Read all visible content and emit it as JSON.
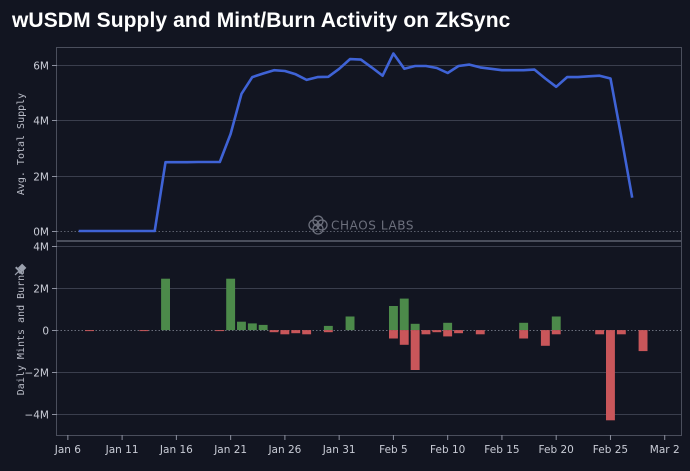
{
  "title": "wUSDM Supply and Mint/Burn Activity on ZkSync",
  "watermark": "CHAOS LABS",
  "pin_icon": "pin-icon",
  "colors": {
    "background": "#121521",
    "line": "#3f63d6",
    "mint": "#4c8a4a",
    "burn": "#c9565a",
    "grid": "#3a3e4d"
  },
  "chart_data": [
    {
      "type": "line",
      "ylabel": "Avg. Total Supply",
      "ylim": [
        0,
        6600000
      ],
      "yticks": [
        0,
        2000000,
        4000000,
        6000000
      ],
      "ytick_labels": [
        "0M",
        "2M",
        "4M",
        "6M"
      ],
      "grid": true,
      "x_dates": [
        "2025-01-07",
        "2025-01-08",
        "2025-01-09",
        "2025-01-10",
        "2025-01-11",
        "2025-01-12",
        "2025-01-13",
        "2025-01-14",
        "2025-01-15",
        "2025-01-16",
        "2025-01-17",
        "2025-01-18",
        "2025-01-19",
        "2025-01-20",
        "2025-01-21",
        "2025-01-22",
        "2025-01-23",
        "2025-01-24",
        "2025-01-25",
        "2025-01-26",
        "2025-01-27",
        "2025-01-28",
        "2025-01-29",
        "2025-01-30",
        "2025-01-31",
        "2025-02-01",
        "2025-02-02",
        "2025-02-03",
        "2025-02-04",
        "2025-02-05",
        "2025-02-06",
        "2025-02-07",
        "2025-02-08",
        "2025-02-09",
        "2025-02-10",
        "2025-02-11",
        "2025-02-12",
        "2025-02-13",
        "2025-02-14",
        "2025-02-15",
        "2025-02-16",
        "2025-02-17",
        "2025-02-18",
        "2025-02-19",
        "2025-02-20",
        "2025-02-21",
        "2025-02-22",
        "2025-02-23",
        "2025-02-24",
        "2025-02-25",
        "2025-02-26",
        "2025-02-27"
      ],
      "series": [
        {
          "values": [
            0,
            0,
            0,
            0,
            0,
            0,
            0,
            0,
            2480000,
            2480000,
            2480000,
            2490000,
            2490000,
            2490000,
            3500000,
            4950000,
            5550000,
            5680000,
            5800000,
            5770000,
            5650000,
            5450000,
            5550000,
            5560000,
            5850000,
            6200000,
            6180000,
            5900000,
            5600000,
            6400000,
            5850000,
            5950000,
            5950000,
            5880000,
            5700000,
            5950000,
            6000000,
            5900000,
            5850000,
            5800000,
            5800000,
            5800000,
            5820000,
            5500000,
            5200000,
            5550000,
            5550000,
            5580000,
            5600000,
            5500000,
            3400000,
            1200000
          ]
        }
      ]
    },
    {
      "type": "bar",
      "ylabel": "Daily Mints and Burns",
      "ylim": [
        -5000000,
        4200000
      ],
      "yticks": [
        -4000000,
        -2000000,
        0,
        2000000,
        4000000
      ],
      "ytick_labels": [
        "−4M",
        "−2M",
        "0",
        "2M",
        "4M"
      ],
      "grid": true,
      "x_dates": [
        "2025-01-07",
        "2025-01-08",
        "2025-01-09",
        "2025-01-10",
        "2025-01-11",
        "2025-01-12",
        "2025-01-13",
        "2025-01-14",
        "2025-01-15",
        "2025-01-16",
        "2025-01-17",
        "2025-01-18",
        "2025-01-19",
        "2025-01-20",
        "2025-01-21",
        "2025-01-22",
        "2025-01-23",
        "2025-01-24",
        "2025-01-25",
        "2025-01-26",
        "2025-01-27",
        "2025-01-28",
        "2025-01-29",
        "2025-01-30",
        "2025-01-31",
        "2025-02-01",
        "2025-02-02",
        "2025-02-03",
        "2025-02-04",
        "2025-02-05",
        "2025-02-06",
        "2025-02-07",
        "2025-02-08",
        "2025-02-09",
        "2025-02-10",
        "2025-02-11",
        "2025-02-12",
        "2025-02-13",
        "2025-02-14",
        "2025-02-15",
        "2025-02-16",
        "2025-02-17",
        "2025-02-18",
        "2025-02-19",
        "2025-02-20",
        "2025-02-21",
        "2025-02-22",
        "2025-02-23",
        "2025-02-24",
        "2025-02-25",
        "2025-02-26",
        "2025-02-27",
        "2025-02-28"
      ],
      "series": [
        {
          "kind": "mints",
          "values": [
            0,
            0,
            0,
            0,
            0,
            0,
            0,
            0,
            2450000,
            0,
            0,
            0,
            0,
            0,
            2450000,
            400000,
            320000,
            250000,
            0,
            0,
            0,
            0,
            0,
            200000,
            0,
            650000,
            0,
            0,
            0,
            1150000,
            1500000,
            300000,
            0,
            0,
            350000,
            0,
            0,
            0,
            0,
            0,
            0,
            350000,
            0,
            0,
            650000,
            0,
            0,
            0,
            0,
            0,
            0,
            0,
            0
          ]
        },
        {
          "kind": "burns",
          "values": [
            0,
            -20000,
            0,
            0,
            0,
            0,
            -30000,
            0,
            0,
            0,
            0,
            0,
            0,
            -30000,
            0,
            0,
            0,
            0,
            -100000,
            -200000,
            -150000,
            -200000,
            0,
            -100000,
            0,
            0,
            0,
            0,
            0,
            -400000,
            -700000,
            -1900000,
            -200000,
            -100000,
            -300000,
            -150000,
            0,
            -200000,
            0,
            0,
            0,
            -400000,
            0,
            -750000,
            -200000,
            0,
            0,
            0,
            -200000,
            -4300000,
            -200000,
            0,
            -1000000
          ]
        }
      ],
      "x_tick_labels": [
        "Jan 6",
        "Jan 11",
        "Jan 16",
        "Jan 21",
        "Jan 26",
        "Jan 31",
        "Feb 5",
        "Feb 10",
        "Feb 15",
        "Feb 20",
        "Feb 25",
        "Mar 2"
      ]
    }
  ]
}
